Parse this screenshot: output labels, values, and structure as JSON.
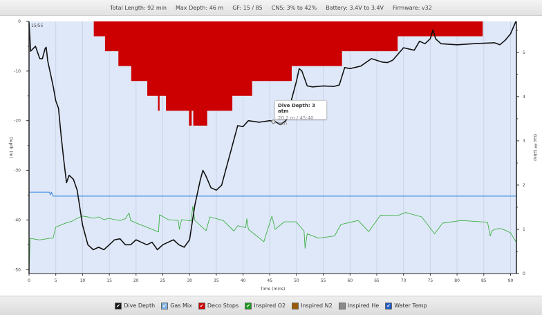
{
  "header": {
    "items": [
      "Total Length: 92 min",
      "Max Depth: 46 m",
      "GF: 15 / 85",
      "CNS: 3% to 42%",
      "Battery: 3.4V to 3.4V",
      "Firmware: v32"
    ]
  },
  "tooltip": {
    "title": "Dive Depth: 3 atm",
    "detail": "20.2 m / 45:40 min"
  },
  "legend": [
    {
      "label": "Dive Depth",
      "color": "#1a1a1a",
      "checked": true
    },
    {
      "label": "Gas Mix",
      "color": "#7fb3e6",
      "checked": true
    },
    {
      "label": "Deco Stops",
      "color": "#cc0000",
      "checked": true
    },
    {
      "label": "Inspired O2",
      "color": "#1f9a1f",
      "checked": true
    },
    {
      "label": "Inspired N2",
      "color": "#9a5a00",
      "checked": false
    },
    {
      "label": "Inspired He",
      "color": "#8a8a8a",
      "checked": false
    },
    {
      "label": "Water Temp",
      "color": "#1e5bc6",
      "checked": true
    }
  ],
  "chart_data": {
    "type": "line",
    "corner_label": "15/55",
    "xlabel": "Time (mins)",
    "ylabel": "Depth (m)",
    "y2label": "Gas PP (atm)",
    "xlim": [
      0,
      91.1
    ],
    "ylim": [
      -50.8,
      0
    ],
    "y2lim": [
      0,
      5.7
    ],
    "xticks": [
      0,
      5,
      10,
      15,
      20,
      25,
      30,
      35,
      40,
      45,
      50,
      55,
      60,
      65,
      70,
      75,
      80,
      85,
      90
    ],
    "yticks": [
      0,
      -10,
      -20,
      -30,
      -40,
      -50
    ],
    "y2ticks": [
      0,
      1,
      2,
      3,
      4,
      5
    ],
    "grid": "vertical",
    "background": "#dfe8f8",
    "colors": {
      "depth": "#111111",
      "gas_mix": "#4a90e2",
      "deco": "#cc0000",
      "o2": "#3cb043"
    },
    "series": [
      {
        "name": "Dive Depth",
        "axis": "left",
        "points": [
          [
            0,
            -0.3
          ],
          [
            0.3,
            -6
          ],
          [
            1.2,
            -5
          ],
          [
            2,
            -7.5
          ],
          [
            2.5,
            -7.5
          ],
          [
            3,
            -5.5
          ],
          [
            3.2,
            -5.2
          ],
          [
            3.5,
            -8
          ],
          [
            4.5,
            -13
          ],
          [
            5,
            -16
          ],
          [
            5.5,
            -17.5
          ],
          [
            6,
            -23
          ],
          [
            6.5,
            -28
          ],
          [
            7,
            -32.5
          ],
          [
            7.5,
            -31
          ],
          [
            8.3,
            -31.8
          ],
          [
            9,
            -34
          ],
          [
            10,
            -41
          ],
          [
            11,
            -45
          ],
          [
            12,
            -46
          ],
          [
            13,
            -45.5
          ],
          [
            14,
            -46
          ],
          [
            15,
            -45
          ],
          [
            16,
            -44
          ],
          [
            17,
            -43.8
          ],
          [
            18,
            -45
          ],
          [
            19,
            -45
          ],
          [
            20,
            -44
          ],
          [
            21,
            -44.5
          ],
          [
            22,
            -45
          ],
          [
            23,
            -44.5
          ],
          [
            24,
            -46
          ],
          [
            25,
            -45
          ],
          [
            26,
            -44.5
          ],
          [
            27,
            -44
          ],
          [
            28,
            -45
          ],
          [
            29,
            -45.5
          ],
          [
            30,
            -44
          ],
          [
            31,
            -37
          ],
          [
            32,
            -32
          ],
          [
            32.5,
            -30
          ],
          [
            33,
            -31
          ],
          [
            34,
            -33.5
          ],
          [
            35,
            -34
          ],
          [
            36,
            -33
          ],
          [
            37,
            -29
          ],
          [
            38,
            -25
          ],
          [
            39,
            -21
          ],
          [
            40,
            -21.2
          ],
          [
            41,
            -20
          ],
          [
            43,
            -20.3
          ],
          [
            45,
            -20
          ],
          [
            46,
            -20.2
          ],
          [
            47,
            -20.8
          ],
          [
            48,
            -20
          ],
          [
            49,
            -16
          ],
          [
            50,
            -12
          ],
          [
            50.5,
            -9.5
          ],
          [
            51,
            -10
          ],
          [
            52,
            -13
          ],
          [
            53,
            -13.2
          ],
          [
            55,
            -13
          ],
          [
            57,
            -13.1
          ],
          [
            58,
            -12.8
          ],
          [
            59,
            -9.3
          ],
          [
            60,
            -9.5
          ],
          [
            62,
            -9
          ],
          [
            64,
            -7.5
          ],
          [
            66,
            -8.2
          ],
          [
            67,
            -8.3
          ],
          [
            68,
            -7.8
          ],
          [
            70,
            -5.3
          ],
          [
            72,
            -5.8
          ],
          [
            73,
            -4
          ],
          [
            74,
            -4.5
          ],
          [
            75,
            -3.5
          ],
          [
            75.5,
            -1.7
          ],
          [
            76,
            -3.5
          ],
          [
            77,
            -4.5
          ],
          [
            80,
            -4.7
          ],
          [
            83,
            -4.5
          ],
          [
            85,
            -4.4
          ],
          [
            87,
            -4.3
          ],
          [
            88,
            -4.7
          ],
          [
            89,
            -3.8
          ],
          [
            90,
            -2.5
          ],
          [
            91,
            0
          ]
        ]
      },
      {
        "name": "Gas Mix",
        "axis": "right",
        "points": [
          [
            0,
            1.84
          ],
          [
            3.8,
            1.84
          ],
          [
            4.0,
            1.78
          ],
          [
            4.2,
            1.84
          ],
          [
            4.5,
            1.75
          ],
          [
            91.1,
            1.75
          ]
        ]
      },
      {
        "name": "Deco Stops",
        "axis": "left",
        "steps": [
          [
            12.1,
            -3
          ],
          [
            14.2,
            -6
          ],
          [
            16.7,
            -9
          ],
          [
            19.1,
            -12
          ],
          [
            22.1,
            -15
          ],
          [
            24.1,
            -18
          ],
          [
            24.4,
            -15
          ],
          [
            25.6,
            -18
          ],
          [
            29.9,
            -21
          ],
          [
            30.4,
            -18
          ],
          [
            30.7,
            -21
          ],
          [
            33.3,
            -18
          ],
          [
            38.0,
            -15
          ],
          [
            41.7,
            -12
          ],
          [
            49.1,
            -9
          ],
          [
            58.5,
            -6
          ],
          [
            68.9,
            -3
          ],
          [
            84.8,
            0
          ]
        ]
      },
      {
        "name": "Inspired O2",
        "axis": "right",
        "points": [
          [
            0,
            0.0
          ],
          [
            0.2,
            0.8
          ],
          [
            1,
            0.78
          ],
          [
            2,
            0.76
          ],
          [
            3,
            0.78
          ],
          [
            4,
            0.8
          ],
          [
            4.5,
            0.8
          ],
          [
            5,
            1.05
          ],
          [
            6,
            1.1
          ],
          [
            7,
            1.15
          ],
          [
            8,
            1.18
          ],
          [
            9,
            1.25
          ],
          [
            10,
            1.3
          ],
          [
            11,
            1.28
          ],
          [
            12,
            1.25
          ],
          [
            13,
            1.28
          ],
          [
            14,
            1.22
          ],
          [
            15,
            1.25
          ],
          [
            16,
            1.22
          ],
          [
            17,
            1.2
          ],
          [
            18,
            1.24
          ],
          [
            18.7,
            1.37
          ],
          [
            19,
            1.2
          ],
          [
            20.5,
            1.12
          ],
          [
            22,
            1.05
          ],
          [
            24.2,
            0.94
          ],
          [
            24.4,
            1.33
          ],
          [
            26,
            1.22
          ],
          [
            27.9,
            1.2
          ],
          [
            28.1,
            1.0
          ],
          [
            28.5,
            1.22
          ],
          [
            30.3,
            1.19
          ],
          [
            30.6,
            1.52
          ],
          [
            31,
            1.2
          ],
          [
            33.1,
            0.97
          ],
          [
            33.8,
            1.28
          ],
          [
            36.3,
            1.2
          ],
          [
            38.3,
            0.96
          ],
          [
            39,
            1.08
          ],
          [
            40.5,
            1.04
          ],
          [
            40.7,
            1.24
          ],
          [
            41,
            1.0
          ],
          [
            43.9,
            0.72
          ],
          [
            45.4,
            1.3
          ],
          [
            46,
            1.0
          ],
          [
            47.7,
            1.17
          ],
          [
            49.9,
            1.17
          ],
          [
            51.4,
            0.96
          ],
          [
            51.6,
            0.57
          ],
          [
            52,
            0.9
          ],
          [
            54.1,
            0.8
          ],
          [
            57.1,
            0.85
          ],
          [
            58.3,
            1.11
          ],
          [
            61.5,
            1.2
          ],
          [
            63.5,
            0.95
          ],
          [
            65.7,
            1.32
          ],
          [
            68.9,
            1.31
          ],
          [
            70.4,
            1.38
          ],
          [
            71,
            1.36
          ],
          [
            73.4,
            1.28
          ],
          [
            75.8,
            0.9
          ],
          [
            77.3,
            1.14
          ],
          [
            80.8,
            1.2
          ],
          [
            85.7,
            1.16
          ],
          [
            86.2,
            0.85
          ],
          [
            86.5,
            0.96
          ],
          [
            87,
            1.0
          ],
          [
            88,
            1.02
          ],
          [
            89,
            0.98
          ],
          [
            90,
            0.92
          ],
          [
            91,
            0.72
          ]
        ]
      }
    ],
    "marker": {
      "x": 45.67,
      "y": -20.2
    }
  }
}
